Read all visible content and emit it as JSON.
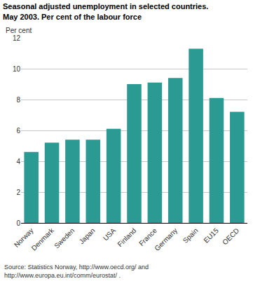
{
  "chart_data": {
    "type": "bar",
    "title": [
      "Seasonal adjusted unemployment in selected countries.",
      "May 2003. Per cent of the labour force"
    ],
    "y_label": "Per cent",
    "categories": [
      "Norway",
      "Denmark",
      "Sweden",
      "Japan",
      "USA",
      "Finland",
      "France",
      "Germany",
      "Spain",
      "EU15",
      "OECD"
    ],
    "values": [
      4.6,
      5.2,
      5.4,
      5.4,
      6.1,
      9.0,
      9.1,
      9.4,
      11.3,
      8.1,
      7.2
    ],
    "color": "#2a9a93",
    "ylim": [
      0,
      12
    ],
    "yticks": [
      0,
      2,
      4,
      6,
      8,
      10,
      12
    ],
    "grid": true,
    "source": [
      "Source: Statistics Norway, http://www.oecd.org/ and",
      "http://www.europa.eu.int/comm/eurostat/ ."
    ]
  }
}
